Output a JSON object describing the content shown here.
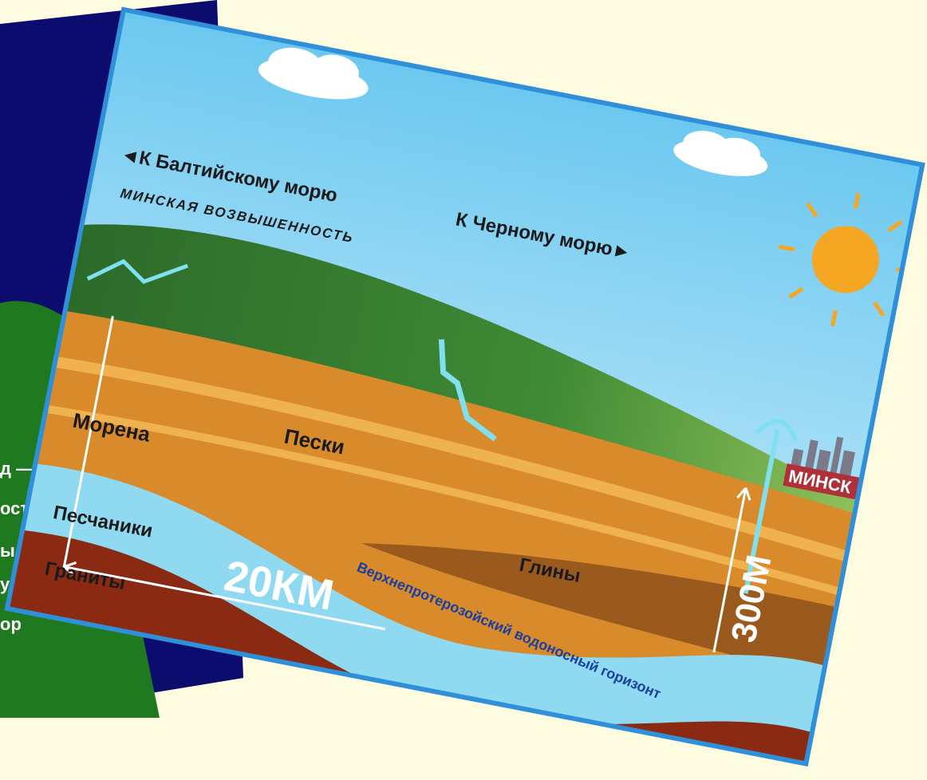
{
  "left_slide": {
    "fragments": [
      "д —",
      "ост",
      "ы",
      "уг",
      "ор"
    ]
  },
  "diagram": {
    "direction_left": "◄К Балтийскому морю",
    "direction_right": "К Черному морю►",
    "upland": "МИНСКАЯ ВОЗВЫШЕННОСТЬ",
    "layers": {
      "moraine": "Морена",
      "sands": "Пески",
      "sandstones": "Песчаники",
      "granites": "Граниты",
      "clays": "Глины"
    },
    "distance": "20КМ",
    "depth": "300М",
    "city": "МИНСК",
    "aquifer": "Верхнепротерозойский водоносный горизонт"
  }
}
